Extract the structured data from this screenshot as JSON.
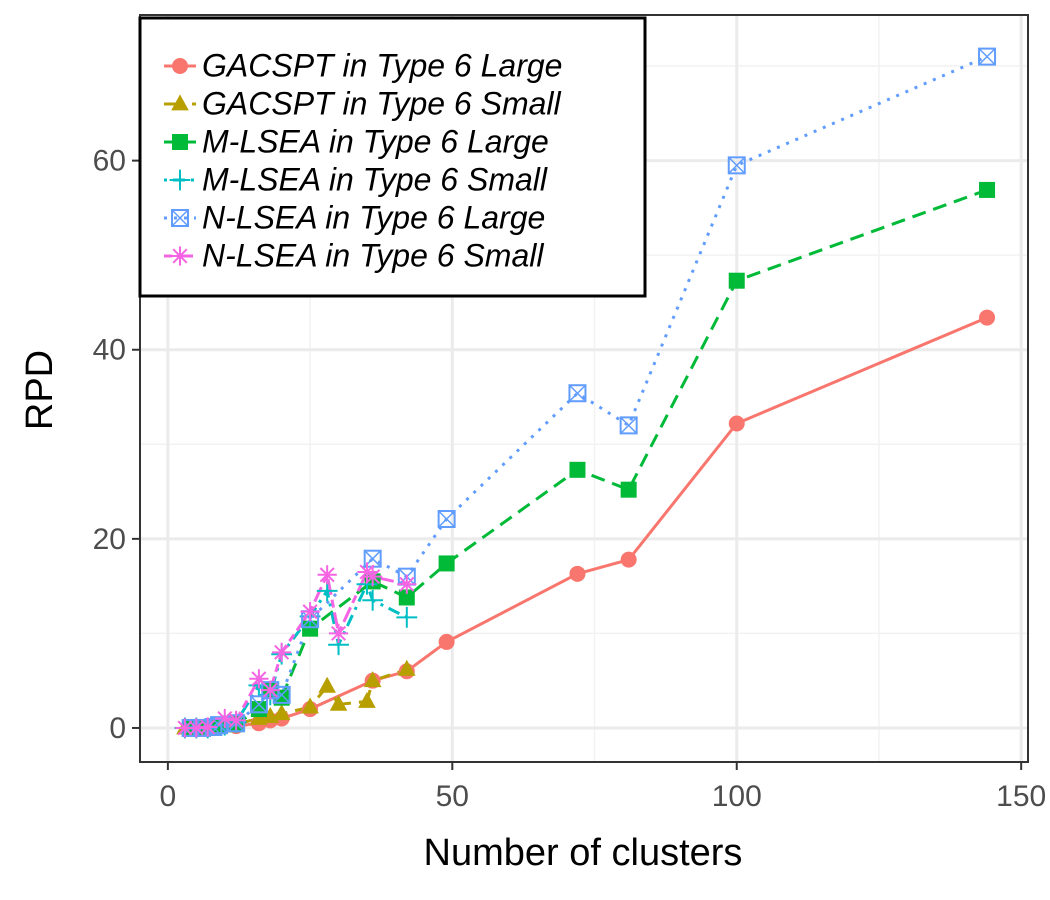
{
  "chart_data": {
    "type": "line",
    "xlabel": "Number of clusters",
    "ylabel": "RPD",
    "xlim": [
      -4.9,
      151.2
    ],
    "xticks": [
      0,
      50,
      100,
      150
    ],
    "ylim": [
      -3.6,
      75.4
    ],
    "yticks": [
      0,
      20,
      40,
      60
    ],
    "grid": true,
    "legend": "top-left",
    "series": [
      {
        "name": "GACSPT in Type 6 Large",
        "color": "#f8766d",
        "dash": "solid",
        "marker": "circle",
        "x": [
          4,
          6,
          8,
          9,
          12,
          16,
          18,
          20,
          25,
          36,
          42,
          49,
          72,
          81,
          100,
          144
        ],
        "values": [
          0,
          0,
          0,
          0.1,
          0.2,
          0.5,
          0.8,
          1.0,
          2.0,
          5.0,
          6.0,
          9.1,
          16.3,
          17.8,
          32.2,
          43.4
        ]
      },
      {
        "name": "GACSPT in Type 6 Small",
        "color": "#b79f00",
        "dash": "longdash",
        "marker": "triangle",
        "x": [
          3,
          5,
          7,
          10,
          12,
          16,
          18,
          20,
          25,
          28,
          30,
          35,
          36,
          42
        ],
        "values": [
          0,
          0,
          0,
          0.2,
          0.4,
          1.0,
          1.2,
          1.5,
          2.2,
          4.4,
          2.5,
          2.8,
          5.0,
          6.2
        ]
      },
      {
        "name": "M-LSEA in Type 6 Large",
        "color": "#00ba38",
        "dash": "dashed",
        "marker": "square",
        "x": [
          4,
          6,
          8,
          9,
          12,
          16,
          18,
          20,
          25,
          36,
          42,
          49,
          72,
          81,
          100,
          144
        ],
        "values": [
          0,
          0,
          0.1,
          0.2,
          0.4,
          2.0,
          4.0,
          3.2,
          10.5,
          15.5,
          13.8,
          17.4,
          27.3,
          25.2,
          47.3,
          56.9
        ]
      },
      {
        "name": "M-LSEA in Type 6 Small",
        "color": "#00bfc4",
        "dash": "dotdash",
        "marker": "plus",
        "x": [
          3,
          5,
          7,
          10,
          12,
          16,
          18,
          20,
          25,
          28,
          30,
          35,
          36,
          42
        ],
        "values": [
          0,
          0,
          0,
          0.3,
          0.6,
          4.5,
          3.5,
          7.8,
          11.8,
          14.5,
          8.8,
          15.2,
          13.5,
          11.7
        ]
      },
      {
        "name": "N-LSEA in Type 6 Large",
        "color": "#619cff",
        "dash": "dotted",
        "marker": "boxx",
        "x": [
          4,
          6,
          8,
          9,
          12,
          16,
          18,
          20,
          25,
          36,
          42,
          49,
          72,
          81,
          100,
          144
        ],
        "values": [
          0,
          0,
          0.1,
          0.3,
          0.5,
          2.5,
          4.0,
          3.5,
          11.5,
          17.9,
          16.0,
          22.1,
          35.4,
          32.0,
          59.5,
          71.0
        ]
      },
      {
        "name": "N-LSEA in Type 6 Small",
        "color": "#f564e3",
        "dash": "twodash",
        "marker": "asterisk",
        "x": [
          3,
          5,
          7,
          10,
          12,
          16,
          18,
          20,
          25,
          28,
          30,
          35,
          36,
          42
        ],
        "values": [
          0,
          0,
          0.1,
          1.0,
          0.8,
          5.2,
          4.0,
          8.0,
          12.3,
          16.2,
          10.0,
          16.5,
          16.0,
          15.2
        ]
      }
    ]
  }
}
